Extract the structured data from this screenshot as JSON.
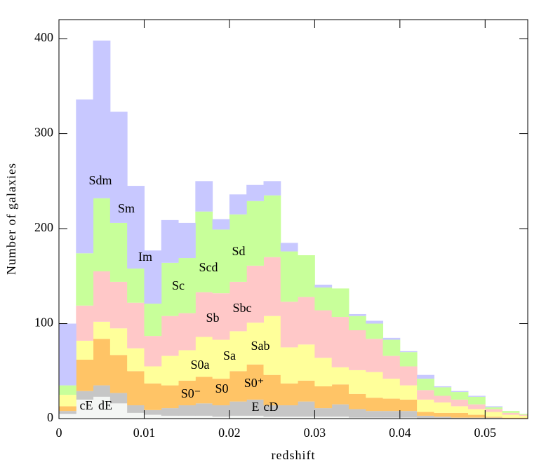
{
  "chart_data": {
    "type": "stacked_histogram",
    "xlabel": "redshift",
    "ylabel": "Number of galaxies",
    "bins": [
      0,
      0.002,
      0.004,
      0.006,
      0.008,
      0.01,
      0.012,
      0.014,
      0.016,
      0.018,
      0.02,
      0.022,
      0.024,
      0.026,
      0.028,
      0.03,
      0.032,
      0.034,
      0.036,
      0.038,
      0.04,
      0.042,
      0.044,
      0.046,
      0.048,
      0.05,
      0.052,
      0.054,
      0.056
    ],
    "xlim": [
      0,
      0.055
    ],
    "ylim": [
      0,
      420
    ],
    "xticks": [
      0,
      0.01,
      0.02,
      0.03,
      0.04,
      0.05
    ],
    "yticks": [
      0,
      100,
      200,
      300,
      400
    ],
    "series": [
      {
        "labels": [
          "cE",
          "dE"
        ],
        "color": "#f4f6f4",
        "values": [
          5,
          20,
          23,
          16,
          6,
          4,
          3,
          3,
          3,
          2,
          3,
          3,
          2,
          2,
          2,
          2,
          2,
          1,
          1,
          1,
          1,
          0,
          0,
          0,
          0,
          0,
          0,
          0
        ]
      },
      {
        "labels": [
          "E",
          "cD"
        ],
        "color": "#c6c6c6",
        "values": [
          3,
          9,
          12,
          11,
          8,
          5,
          8,
          11,
          13,
          12,
          15,
          17,
          12,
          12,
          16,
          9,
          13,
          9,
          7,
          7,
          7,
          3,
          2,
          1,
          1,
          1,
          0,
          0
        ]
      },
      {
        "labels": [
          "S0⁻",
          "S0",
          "S0⁺"
        ],
        "color": "#ffc466",
        "values": [
          5,
          33,
          49,
          40,
          36,
          28,
          24,
          26,
          28,
          28,
          32,
          37,
          32,
          23,
          22,
          23,
          21,
          16,
          14,
          13,
          12,
          4,
          4,
          5,
          3,
          1,
          1,
          1
        ]
      },
      {
        "labels": [
          "S0a",
          "Sa",
          "Sab"
        ],
        "color": "#ffff9a",
        "values": [
          12,
          20,
          18,
          28,
          24,
          18,
          31,
          32,
          42,
          41,
          42,
          44,
          62,
          38,
          38,
          30,
          18,
          25,
          27,
          21,
          15,
          13,
          11,
          7,
          6,
          5,
          3,
          2
        ]
      },
      {
        "labels": [
          "Sb",
          "Sbc"
        ],
        "color": "#ffc8c8",
        "values": [
          0,
          37,
          53,
          49,
          48,
          32,
          42,
          39,
          47,
          49,
          52,
          60,
          62,
          48,
          50,
          50,
          53,
          42,
          35,
          24,
          20,
          10,
          7,
          7,
          5,
          3,
          2,
          1
        ]
      },
      {
        "labels": [
          "Sc",
          "Scd",
          "Sd"
        ],
        "color": "#c8ff9a",
        "values": [
          10,
          55,
          77,
          62,
          36,
          34,
          56,
          58,
          85,
          67,
          71,
          68,
          65,
          53,
          44,
          24,
          30,
          15,
          16,
          17,
          15,
          12,
          9,
          8,
          8,
          2,
          2,
          1
        ]
      },
      {
        "labels": [
          "Im",
          "Sm",
          "Sdm"
        ],
        "color": "#c8c8ff",
        "values": [
          65,
          162,
          166,
          117,
          87,
          56,
          45,
          37,
          32,
          11,
          21,
          17,
          15,
          9,
          0,
          3,
          0,
          2,
          3,
          2,
          1,
          4,
          1,
          1,
          1,
          1,
          0,
          0
        ]
      }
    ]
  }
}
